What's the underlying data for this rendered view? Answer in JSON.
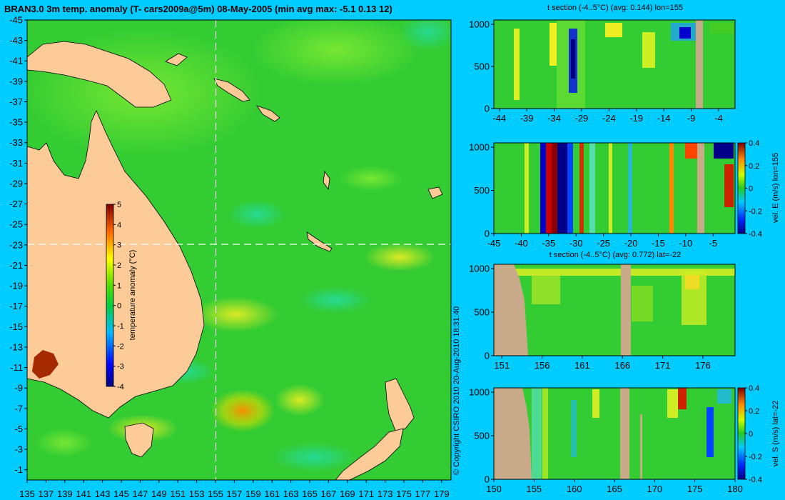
{
  "chart_data": [
    {
      "type": "heatmap",
      "id": "map",
      "title": "BRAN3.0 3m temp. anomaly (T- cars2009a@5m) 08-May-2005 (min avg max: -5.1 0.13 12)",
      "x_ticks": [
        "135",
        "137",
        "139",
        "141",
        "143",
        "145",
        "147",
        "149",
        "151",
        "153",
        "155",
        "157",
        "159",
        "161",
        "163",
        "165",
        "167",
        "169",
        "171",
        "173",
        "175",
        "177",
        "179"
      ],
      "y_ticks": [
        "-1",
        "-3",
        "-5",
        "-7",
        "-9",
        "-11",
        "-13",
        "-15",
        "-17",
        "-19",
        "-21",
        "-23",
        "-25",
        "-27",
        "-29",
        "-31",
        "-33",
        "-35",
        "-37",
        "-39",
        "-41",
        "-43",
        "-45"
      ],
      "xlim": [
        135,
        180
      ],
      "ylim": [
        -45,
        0
      ],
      "crosshair": {
        "lon": 155,
        "lat": -22
      },
      "colorbar": {
        "label": "temperature anomaly (°C)",
        "ticks": [
          "5",
          "4",
          "3",
          "2",
          "1",
          "0",
          "-1",
          "-2",
          "-3",
          "-4"
        ],
        "range": [
          -4,
          5
        ]
      },
      "copyright": "© Copyright CSIRO 2010   20-Aug-2010 18:31:40"
    },
    {
      "type": "heatmap",
      "id": "tsec_lon",
      "title": "t section (-4..5°C) (avg: 0.144) lon=155",
      "x_ticks": [
        "-44",
        "-39",
        "-34",
        "-29",
        "-24",
        "-19",
        "-14",
        "-9",
        "-4"
      ],
      "y_ticks": [
        "0",
        "500",
        "1000"
      ],
      "xlim": [
        -45,
        -1
      ],
      "ylim": [
        1050,
        0
      ]
    },
    {
      "type": "heatmap",
      "id": "vele",
      "title": "",
      "x_ticks": [
        "-45",
        "-40",
        "-35",
        "-30",
        "-25",
        "-20",
        "-15",
        "-10",
        "-5"
      ],
      "y_ticks": [
        "0",
        "500",
        "1000"
      ],
      "xlim": [
        -45,
        -1
      ],
      "ylim": [
        1050,
        0
      ],
      "colorbar": {
        "label": "vel. E (m/s) lon=155",
        "ticks": [
          "0.4",
          "0.2",
          "0",
          "-0.2",
          "-0.4"
        ],
        "range": [
          -0.4,
          0.4
        ]
      }
    },
    {
      "type": "heatmap",
      "id": "tsec_lat",
      "title": "t section (-4..5°C) (avg: 0.772) lat=-22",
      "x_ticks": [
        "151",
        "156",
        "161",
        "166",
        "171",
        "176"
      ],
      "y_ticks": [
        "0",
        "500",
        "1000"
      ],
      "xlim": [
        150,
        180
      ],
      "ylim": [
        1050,
        0
      ]
    },
    {
      "type": "heatmap",
      "id": "vels",
      "title": "",
      "x_ticks": [
        "150",
        "155",
        "160",
        "165",
        "170",
        "175",
        "180"
      ],
      "y_ticks": [
        "0",
        "500",
        "1000"
      ],
      "xlim": [
        150,
        180
      ],
      "ylim": [
        1050,
        0
      ],
      "colorbar": {
        "label": "vel. S (m/s) lat=-22",
        "ticks": [
          "0.4",
          "0.2",
          "0",
          "-0.2",
          "-0.4"
        ],
        "range": [
          -0.4,
          0.4
        ]
      }
    }
  ],
  "colors": {
    "background": "#00CCFF",
    "land": "#FCCB98",
    "section_land": "#C8AA88",
    "ocean": "#33CC33"
  }
}
